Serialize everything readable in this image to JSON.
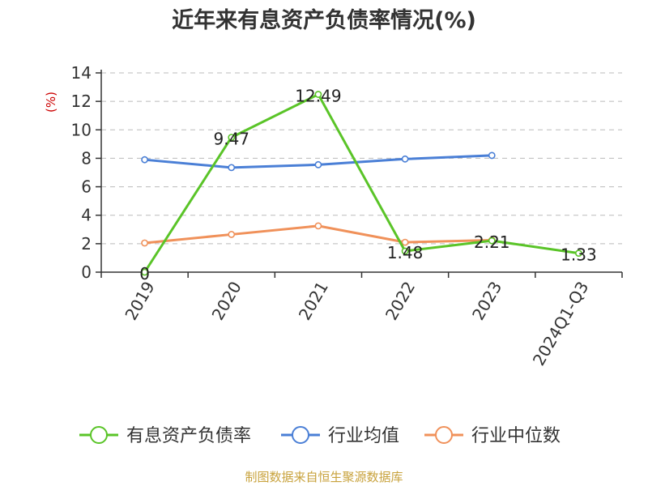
{
  "chart_data": {
    "type": "line",
    "title": "近年来有息资产负债率情况(%)",
    "ylabel": "(%)",
    "xlabel": "",
    "categories": [
      "2019",
      "2020",
      "2021",
      "2022",
      "2023",
      "2024Q1-Q3"
    ],
    "yticks": [
      0,
      2,
      4,
      6,
      8,
      10,
      12,
      14
    ],
    "ylim": [
      0,
      14
    ],
    "grid": true,
    "legend_position": "bottom",
    "series": [
      {
        "name": "有息资产负债率",
        "color": "#5ac428",
        "values": [
          0,
          9.47,
          12.49,
          1.48,
          2.21,
          1.33
        ],
        "labels": [
          "0",
          "9.47",
          "12.49",
          "1.48",
          "2.21",
          "1.33"
        ]
      },
      {
        "name": "行业均值",
        "color": "#4a7fd6",
        "values": [
          7.9,
          7.35,
          7.55,
          7.95,
          8.2,
          null
        ]
      },
      {
        "name": "行业中位数",
        "color": "#f0915a",
        "values": [
          2.05,
          2.65,
          3.25,
          2.1,
          2.25,
          null
        ]
      }
    ]
  },
  "source": "制图数据来自恒生聚源数据库"
}
